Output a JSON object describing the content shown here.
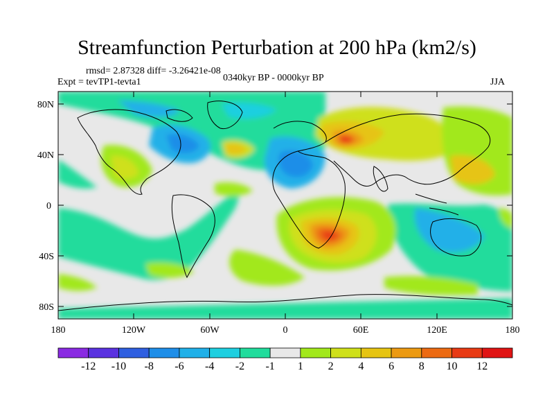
{
  "title": "Streamfunction Perturbation at 200 hPa (km2/s)",
  "stats": "rmsd= 2.87328 diff= -3.26421e-08",
  "experiment": "Expt = tevTP1-tevta1",
  "period": "0340kyr BP - 0000kyr BP",
  "season": "JJA",
  "axes": {
    "lat_labels": [
      "80N",
      "40N",
      "0",
      "40S",
      "80S"
    ],
    "lon_labels": [
      "180",
      "120W",
      "60W",
      "0",
      "60E",
      "120E",
      "180"
    ]
  },
  "colorbar": {
    "labels": [
      "-12",
      "-10",
      "-8",
      "-6",
      "-4",
      "-2",
      "-1",
      "1",
      "2",
      "4",
      "6",
      "8",
      "10",
      "12"
    ],
    "colors": [
      "#8a2be2",
      "#5a32e0",
      "#2f5fe0",
      "#1e8ee8",
      "#20b0e8",
      "#1ecfe0",
      "#21dc9c",
      "#e8e8e8",
      "#a2e81c",
      "#cfe01a",
      "#e6c412",
      "#ec9a12",
      "#ec6a12",
      "#e83a14",
      "#e01414"
    ]
  }
}
